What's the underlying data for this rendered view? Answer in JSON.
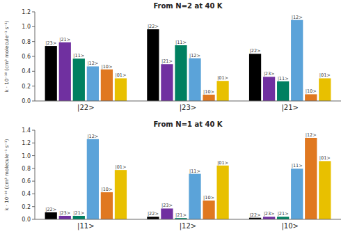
{
  "chart_data": [
    {
      "type": "bar",
      "title": "From N=2 at 40 K",
      "ylabel": "k · 10⁻¹⁰ (cm³ molecule⁻¹ s⁻¹)",
      "categories": [
        "|22>",
        "|23>",
        "|21>"
      ],
      "ylim": [
        0,
        1.2
      ],
      "yticks": [
        {
          "value": 0,
          "label": "0.0"
        },
        0.2,
        0.4,
        0.6,
        0.8,
        {
          "value": 1,
          "label": "1.0"
        },
        1.2
      ],
      "grid": false,
      "series": [
        {
          "color": "#000000",
          "values": [
            0.74,
            0.965,
            0.635
          ],
          "annotations": [
            "|23>",
            "|22>",
            "|22>"
          ]
        },
        {
          "color": "#7030a0",
          "values": [
            0.79,
            0.495,
            0.325
          ],
          "annotations": [
            "|21>",
            "|21>",
            "|23>"
          ]
        },
        {
          "color": "#008060",
          "values": [
            0.57,
            0.75,
            0.265
          ],
          "annotations": [
            "|11>",
            "|11>",
            "|11>"
          ]
        },
        {
          "color": "#5ba3d9",
          "values": [
            0.465,
            0.575,
            1.09
          ],
          "annotations": [
            "|12>",
            "|12>",
            "|12>"
          ]
        },
        {
          "color": "#e07820",
          "values": [
            0.425,
            0.085,
            0.09
          ],
          "annotations": [
            "|10>",
            "|10>",
            "|10>"
          ]
        },
        {
          "color": "#e8c000",
          "values": [
            0.305,
            0.27,
            0.305
          ],
          "annotations": [
            "|01>",
            "|01>",
            "|01>"
          ]
        }
      ]
    },
    {
      "type": "bar",
      "title": "From N=1 at 40 K",
      "ylabel": "k · 10⁻¹⁰ (cm³ molecule⁻¹ s⁻¹)",
      "categories": [
        "|11>",
        "|12>",
        "|10>"
      ],
      "ylim": [
        0,
        1.4
      ],
      "yticks": [
        {
          "value": 0,
          "label": "0.0"
        },
        0.2,
        0.4,
        0.6,
        0.8,
        {
          "value": 1,
          "label": "1.0"
        },
        1.2,
        1.4
      ],
      "grid": false,
      "series": [
        {
          "color": "#000000",
          "values": [
            0.11,
            0.04,
            0.025
          ],
          "annotations": [
            "|22>",
            "|22>",
            "|22>"
          ]
        },
        {
          "color": "#7030a0",
          "values": [
            0.055,
            0.17,
            0.04
          ],
          "annotations": [
            "|23>",
            "|23>",
            "|23>"
          ]
        },
        {
          "color": "#008060",
          "values": [
            0.055,
            0.02,
            0.04
          ],
          "annotations": [
            "|21>",
            "|21>",
            "|21>"
          ]
        },
        {
          "color": "#5ba3d9",
          "values": [
            1.26,
            0.715,
            0.795
          ],
          "annotations": [
            "|12>",
            "|11>",
            "|11>"
          ]
        },
        {
          "color": "#e07820",
          "values": [
            0.425,
            0.295,
            1.28
          ],
          "annotations": [
            "|10>",
            "|10>",
            "|12>"
          ]
        },
        {
          "color": "#e8c000",
          "values": [
            0.775,
            0.845,
            0.915
          ],
          "annotations": [
            "|01>",
            "|01>",
            "|01>"
          ]
        }
      ]
    }
  ]
}
